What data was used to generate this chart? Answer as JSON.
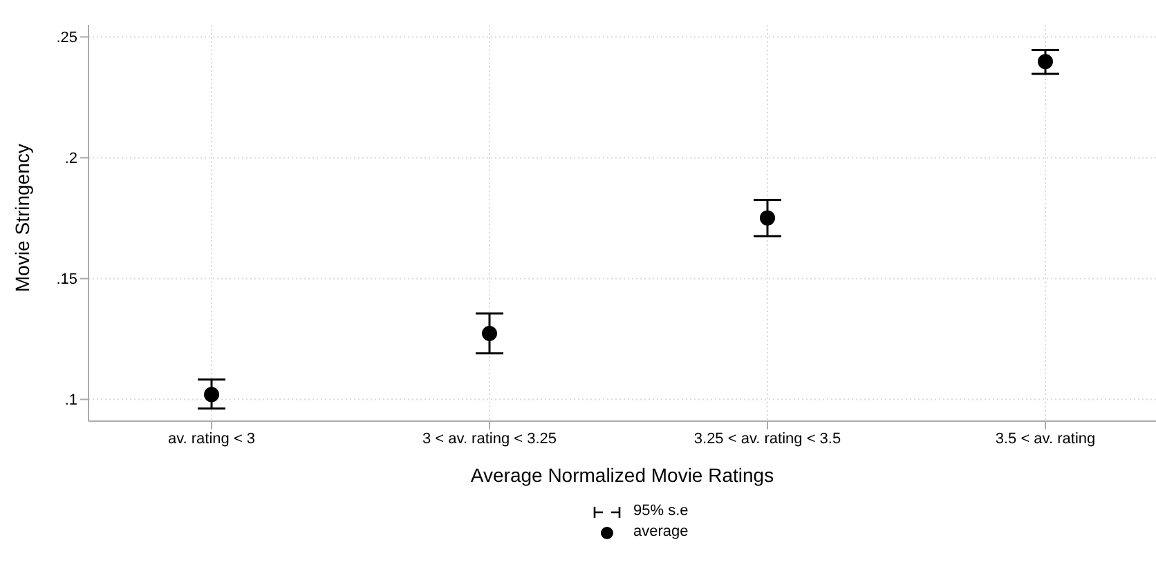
{
  "chart_data": {
    "type": "scatter",
    "xlabel": "Average Normalized Movie Ratings",
    "ylabel": "Movie Stringency",
    "categories": [
      "av. rating < 3",
      "3 < av. rating < 3.25",
      "3.25 < av. rating < 3.5",
      "3.5 < av. rating"
    ],
    "series": [
      {
        "name": "average",
        "color": "#000000",
        "values": [
          0.102,
          0.1273,
          0.1751,
          0.2398
        ],
        "errors": [
          [
            0.0962,
            0.1082
          ],
          [
            0.1191,
            0.1356
          ],
          [
            0.1676,
            0.1826
          ],
          [
            0.2347,
            0.2446
          ]
        ]
      }
    ],
    "legend_title": "95% s.e",
    "ylim": [
      0.091,
      0.255
    ],
    "yticks": [
      {
        "value": 0.1,
        "label": ".1"
      },
      {
        "value": 0.15,
        "label": ".15"
      },
      {
        "value": 0.2,
        "label": ".2"
      },
      {
        "value": 0.25,
        "label": ".25"
      }
    ],
    "grid": true,
    "legend": "bottom",
    "marker": "circle"
  }
}
